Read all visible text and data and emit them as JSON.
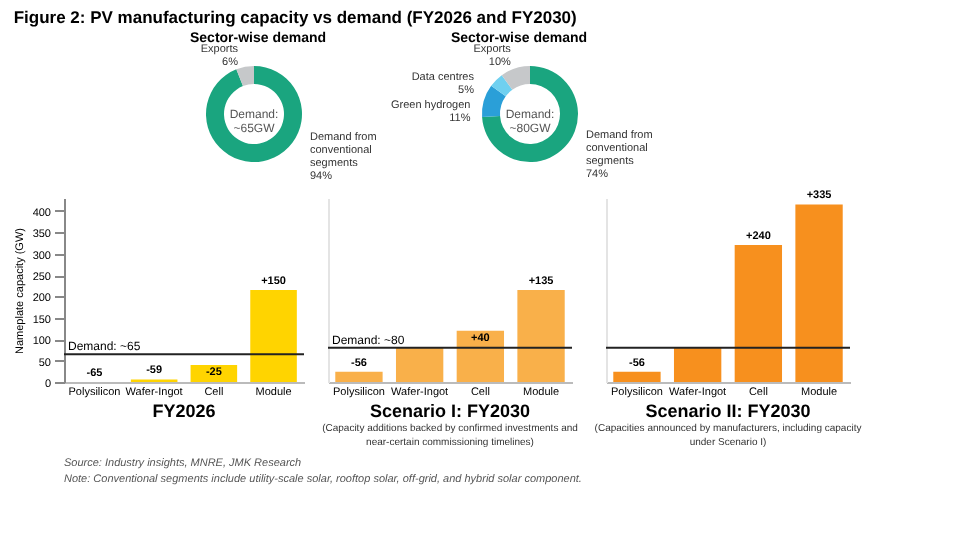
{
  "chart_data": [
    {
      "type": "donut",
      "title": "Figure 2: PV manufacturing capacity vs demand (FY2026 and FY2030)",
      "subtitle": "Sector-wise demand",
      "categories": [
        "Demand from conventional segments",
        "Exports"
      ],
      "values": [
        94,
        6
      ],
      "value_labels": [
        "94%",
        "6%"
      ],
      "colors": [
        "#1aa57f",
        "#c6c8ca"
      ],
      "annotations": [
        "Demand: ~65GW"
      ]
    },
    {
      "type": "bar",
      "title": "FY2026",
      "ylabel": "Nameplate capacity (GW)",
      "categories": [
        "Polysilicon",
        "Wafer-Ingot",
        "Cell",
        "Module"
      ],
      "values": [
        0,
        6,
        40,
        215
      ],
      "color": "#ffd400",
      "ylim": [
        0,
        430
      ],
      "yticks": [
        0,
        50,
        100,
        150,
        200,
        250,
        300,
        350,
        400
      ],
      "ref_lines": [
        {
          "axis": "y",
          "value": 65,
          "label": "Demand: ~65"
        }
      ],
      "annotations": [
        {
          "text": "-65",
          "x": "Polysilicon",
          "y": 0
        },
        {
          "text": "-59",
          "x": "Wafer-Ingot",
          "y": 6
        },
        {
          "text": "-25",
          "x": "Cell",
          "y": 40
        },
        {
          "text": "+150",
          "x": "Module",
          "y": 215
        }
      ]
    },
    {
      "type": "donut",
      "title": "Sector-wise demand",
      "categories": [
        "Demand from conventional segments",
        "Green hydrogen",
        "Data centres",
        "Exports"
      ],
      "values": [
        74,
        11,
        5,
        10
      ],
      "value_labels": [
        "74%",
        "11%",
        "5%",
        "10%"
      ],
      "colors": [
        "#1aa57f",
        "#2a9fd8",
        "#6fd0f0",
        "#c6c8ca"
      ],
      "annotations": [
        "Demand: ~80GW"
      ]
    },
    {
      "type": "bar",
      "title": "Scenario I: FY2030",
      "subtitle": "(Capacity additions backed by confirmed investments and near-certain commissioning timelines)",
      "categories": [
        "Polysilicon",
        "Wafer-Ingot",
        "Cell",
        "Module"
      ],
      "values": [
        24,
        80,
        120,
        215
      ],
      "color": "#f9b04a",
      "ylim": [
        0,
        430
      ],
      "tick_labels": "x",
      "ref_lines": [
        {
          "axis": "y",
          "value": 80,
          "label": "Demand: ~80"
        }
      ],
      "annotations": [
        {
          "text": "-56",
          "x": "Polysilicon",
          "y": 24
        },
        {
          "text": "+40",
          "x": "Cell",
          "y": 120
        },
        {
          "text": "+135",
          "x": "Module",
          "y": 215
        }
      ]
    },
    {
      "type": "bar",
      "title": "Scenario II: FY2030",
      "subtitle": "(Capacities announced by manufacturers, including capacity under Scenario I)",
      "categories": [
        "Polysilicon",
        "Wafer-Ingot",
        "Cell",
        "Module"
      ],
      "values": [
        24,
        80,
        320,
        415
      ],
      "color": "#f7901e",
      "ylim": [
        0,
        430
      ],
      "tick_labels": "x",
      "ref_lines": [
        {
          "axis": "y",
          "value": 80
        }
      ],
      "annotations": [
        {
          "text": "-56",
          "x": "Polysilicon",
          "y": 24
        },
        {
          "text": "+240",
          "x": "Cell",
          "y": 320
        },
        {
          "text": "+335",
          "x": "Module",
          "y": 415
        },
        "Source: Industry insights, MNRE, JMK Research",
        "Note: Conventional segments include utility-scale solar, rooftop solar, off-grid, and hybrid solar component."
      ]
    }
  ]
}
